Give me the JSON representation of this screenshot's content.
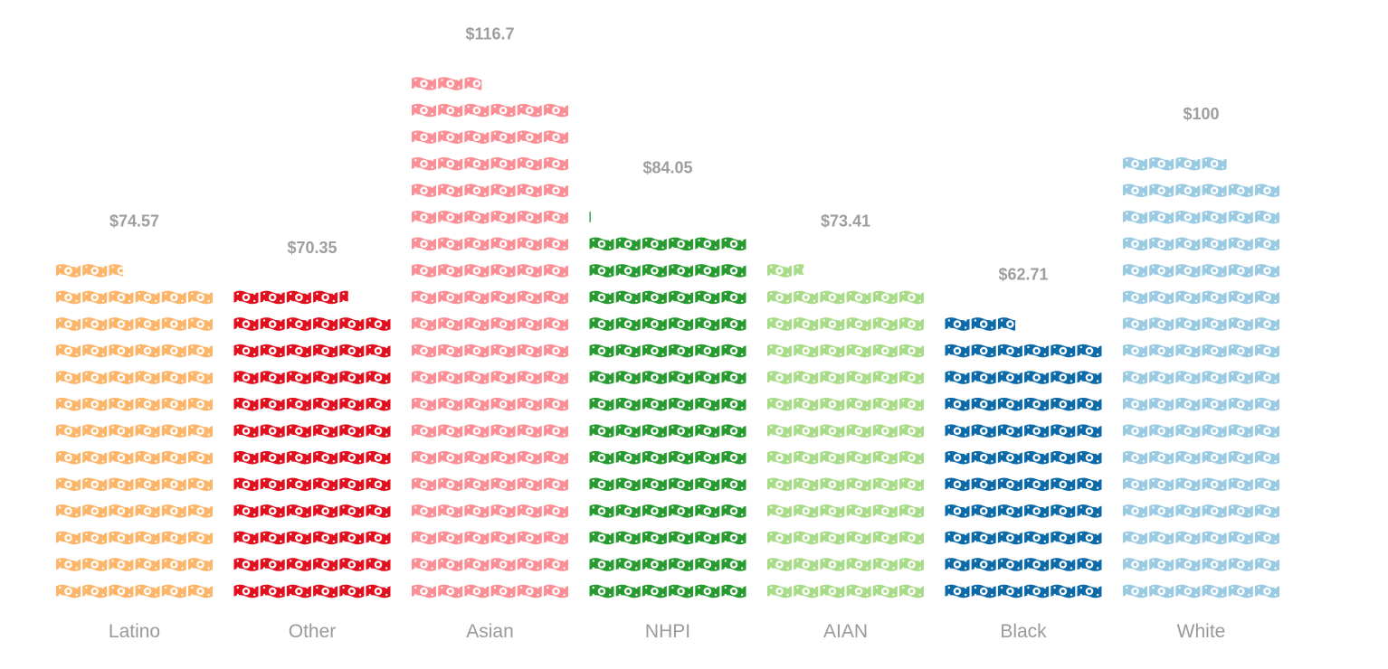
{
  "chart_data": {
    "type": "bar",
    "style": "isotype-pictogram",
    "unit_icon": "dollar-bill-icon",
    "unit_value": 1,
    "icons_per_row": 6,
    "categories": [
      "Latino",
      "Other",
      "Asian",
      "NHPI",
      "AIAN",
      "Black",
      "White"
    ],
    "values": [
      74.57,
      70.35,
      116.7,
      84.05,
      73.41,
      62.71,
      100
    ],
    "value_labels": [
      "$74.57",
      "$70.35",
      "$116.7",
      "$84.05",
      "$73.41",
      "$62.71",
      "$100"
    ],
    "colors": [
      "#fdb56a",
      "#e2101f",
      "#fb8f95",
      "#279b30",
      "#a9dc89",
      "#0d6aa9",
      "#9bcbe3"
    ],
    "title": "",
    "xlabel": "",
    "ylabel": "",
    "legend": "none",
    "grid": false
  }
}
